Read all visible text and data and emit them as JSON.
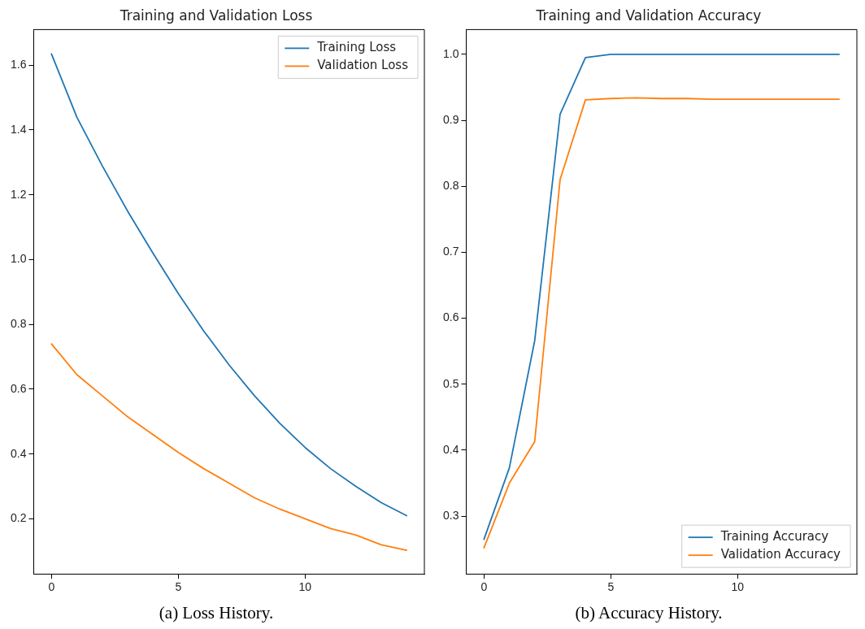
{
  "chart_data": [
    {
      "type": "line",
      "title": "Training and Validation Loss",
      "x": [
        0,
        1,
        2,
        3,
        4,
        5,
        6,
        7,
        8,
        9,
        10,
        11,
        12,
        13,
        14
      ],
      "series": [
        {
          "name": "Training Loss",
          "color": "#1f77b4",
          "values": [
            1.635,
            1.44,
            1.29,
            1.15,
            1.02,
            0.895,
            0.78,
            0.675,
            0.58,
            0.495,
            0.42,
            0.355,
            0.3,
            0.25,
            0.21
          ]
        },
        {
          "name": "Validation Loss",
          "color": "#ff7f0e",
          "values": [
            0.74,
            0.645,
            0.58,
            0.515,
            0.46,
            0.405,
            0.355,
            0.31,
            0.265,
            0.23,
            0.2,
            0.17,
            0.15,
            0.12,
            0.103
          ]
        }
      ],
      "xlim": [
        -0.7,
        14.7
      ],
      "ylim": [
        0.03,
        1.71
      ],
      "xticks": [
        0,
        5,
        10
      ],
      "yticks": [
        0.2,
        0.4,
        0.6,
        0.8,
        {
          "value": 1,
          "label": "1.0"
        },
        1.2,
        1.4,
        1.6
      ],
      "grid": false,
      "legend": "top right",
      "marker": "none",
      "annotations": [
        "(a) Loss History."
      ]
    },
    {
      "type": "line",
      "title": "Training and Validation Accuracy",
      "x": [
        0,
        1,
        2,
        3,
        4,
        5,
        6,
        7,
        8,
        9,
        10,
        11,
        12,
        13,
        14
      ],
      "series": [
        {
          "name": "Training Accuracy",
          "color": "#1f77b4",
          "values": [
            0.265,
            0.373,
            0.566,
            0.909,
            0.995,
            1.0,
            1.0,
            1.0,
            1.0,
            1.0,
            1.0,
            1.0,
            1.0,
            1.0,
            1.0
          ]
        },
        {
          "name": "Validation Accuracy",
          "color": "#ff7f0e",
          "values": [
            0.252,
            0.35,
            0.413,
            0.81,
            0.931,
            0.933,
            0.934,
            0.933,
            0.933,
            0.932,
            0.932,
            0.932,
            0.932,
            0.932,
            0.932
          ]
        }
      ],
      "xlim": [
        -0.7,
        14.7
      ],
      "ylim": [
        0.2125,
        1.0375
      ],
      "xticks": [
        0,
        5,
        10
      ],
      "yticks": [
        0.3,
        0.4,
        0.5,
        0.6,
        0.7,
        0.8,
        0.9,
        {
          "value": 1,
          "label": "1.0"
        }
      ],
      "grid": false,
      "legend": "bottom right",
      "marker": "none",
      "annotations": [
        "(b) Accuracy History."
      ]
    }
  ]
}
